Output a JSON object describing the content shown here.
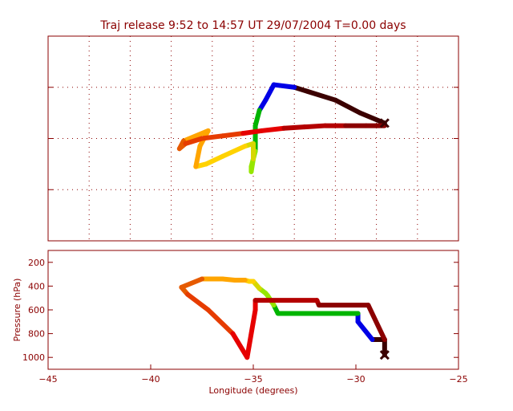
{
  "chart_data": [
    {
      "type": "line",
      "title": "Traj release 9:52 to 14:57 UT 29/07/2004    T=0.00 days",
      "panel": "top",
      "grid": true,
      "xlim": [
        -45,
        -25
      ],
      "ylim": [
        -4,
        4
      ],
      "x_ticks": [
        -45,
        -43,
        -41,
        -39,
        -37,
        -35,
        -33,
        -31,
        -29,
        -27,
        -25
      ],
      "y_ticks": [
        -4,
        -2,
        0,
        2,
        4
      ],
      "series": [
        {
          "x": [
            -28.6,
            -29.8,
            -31.0,
            -33.0,
            -34.0,
            -34.4,
            -34.7,
            -34.9,
            -34.9,
            -35.1,
            -35.1,
            -35.0,
            -35.0,
            -35.4,
            -36.5,
            -37.3,
            -37.8,
            -37.6,
            -37.2,
            -38.4,
            -38.6,
            -38.3,
            -37.5,
            -36.5,
            -35.5,
            -34.6,
            -33.5,
            -32.5,
            -31.5,
            -30.5,
            -29.5,
            -28.6
          ],
          "y": [
            0.6,
            1.0,
            1.5,
            2.0,
            2.1,
            1.5,
            1.1,
            0.5,
            -0.5,
            -1.1,
            -1.3,
            -0.8,
            -0.2,
            -0.3,
            -0.7,
            -1.0,
            -1.1,
            -0.3,
            0.3,
            -0.1,
            -0.4,
            -0.2,
            0.0,
            0.1,
            0.2,
            0.3,
            0.4,
            0.45,
            0.5,
            0.5,
            0.5,
            0.5
          ],
          "colors": [
            "#3b0000",
            "#0000e6",
            "#00b400",
            "#96e600",
            "#d7d700",
            "#ffd200",
            "#ffa500",
            "#e65a00",
            "#e63c00",
            "#e60000",
            "#b40000",
            "#8b0000"
          ]
        }
      ]
    },
    {
      "type": "line",
      "panel": "bottom",
      "xlabel": "Longitude  (degrees)",
      "ylabel": "Pressure  (hPa)",
      "xlim": [
        -45,
        -25
      ],
      "ylim": [
        1100,
        100
      ],
      "x_ticks": [
        -45,
        -40,
        -35,
        -30,
        -25
      ],
      "y_ticks": [
        200,
        400,
        600,
        800,
        1000
      ],
      "series": [
        {
          "x": [
            -28.6,
            -28.6,
            -28.9,
            -29.2,
            -29.9,
            -29.9,
            -33.8,
            -34.0,
            -34.3,
            -34.4,
            -34.7,
            -34.9,
            -35.0,
            -35.2,
            -35.4,
            -35.9,
            -36.5,
            -37.5,
            -38.5,
            -38.2,
            -37.2,
            -36.0,
            -35.3,
            -34.9,
            -34.9,
            -31.9,
            -31.8,
            -29.4,
            -28.6
          ],
          "y": [
            980,
            850,
            850,
            850,
            700,
            630,
            630,
            560,
            480,
            460,
            420,
            380,
            360,
            360,
            350,
            350,
            340,
            340,
            410,
            470,
            600,
            800,
            1000,
            600,
            520,
            520,
            560,
            560,
            850
          ],
          "colors": [
            "#3b0000",
            "#0000e6",
            "#00b400",
            "#96e600",
            "#d7d700",
            "#ffd200",
            "#ffa500",
            "#e65a00",
            "#e63c00",
            "#e60000",
            "#b40000",
            "#8b0000"
          ]
        }
      ]
    }
  ]
}
